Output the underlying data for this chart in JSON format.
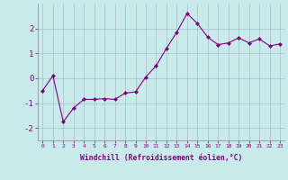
{
  "x": [
    0,
    1,
    2,
    3,
    4,
    5,
    6,
    7,
    8,
    9,
    10,
    11,
    12,
    13,
    14,
    15,
    16,
    17,
    18,
    19,
    20,
    21,
    22,
    23
  ],
  "y": [
    -0.5,
    0.1,
    -1.75,
    -1.2,
    -0.85,
    -0.85,
    -0.82,
    -0.85,
    -0.6,
    -0.55,
    0.05,
    0.5,
    1.2,
    1.85,
    2.6,
    2.2,
    1.65,
    1.35,
    1.42,
    1.62,
    1.42,
    1.58,
    1.3,
    1.38
  ],
  "line_color": "#800080",
  "marker": "D",
  "marker_size": 2,
  "bg_color": "#c8eaea",
  "grid_color": "#aabbcc",
  "xlabel": "Windchill (Refroidissement éolien,°C)",
  "xlabel_color": "#800080",
  "tick_color": "#800080",
  "ylim": [
    -2.5,
    3.0
  ],
  "xlim": [
    -0.5,
    23.5
  ],
  "yticks": [
    -2,
    -1,
    0,
    1,
    2
  ],
  "xtick_labels": [
    "0",
    "1",
    "2",
    "3",
    "4",
    "5",
    "6",
    "7",
    "8",
    "9",
    "10",
    "11",
    "12",
    "13",
    "14",
    "15",
    "16",
    "17",
    "18",
    "19",
    "20",
    "21",
    "22",
    "23"
  ]
}
